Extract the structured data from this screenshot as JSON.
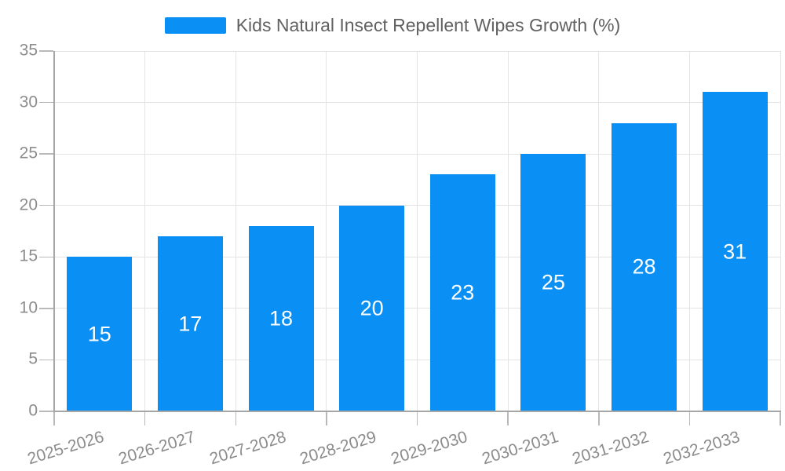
{
  "legend": {
    "label": "Kids Natural Insect Repellent Wipes Growth (%)"
  },
  "chart_data": {
    "type": "bar",
    "title": "Kids Natural Insect Repellent Wipes Growth (%)",
    "series_name": "Kids Natural Insect Repellent Wipes Growth (%)",
    "categories": [
      "2025-2026",
      "2026-2027",
      "2027-2028",
      "2028-2029",
      "2029-2030",
      "2030-2031",
      "2031-2032",
      "2032-2033"
    ],
    "values": [
      15,
      17,
      18,
      20,
      23,
      25,
      28,
      31
    ],
    "xlabel": "",
    "ylabel": "",
    "ylim": [
      0,
      35
    ],
    "yticks": [
      0,
      5,
      10,
      15,
      20,
      25,
      30,
      35
    ],
    "grid": true,
    "legend_position": "top-center",
    "bar_label_position": "inside-center",
    "x_label_rotation_deg": -17,
    "colors": {
      "bar": "#0a90f5",
      "bar_label": "#ffffff",
      "grid_line": "#e4e4e4",
      "axis_line": "#a6a6a6",
      "tick_line": "#b9b9b9",
      "tick_label": "#8c8c8c",
      "legend_text": "#616161",
      "background": "#ffffff"
    }
  }
}
